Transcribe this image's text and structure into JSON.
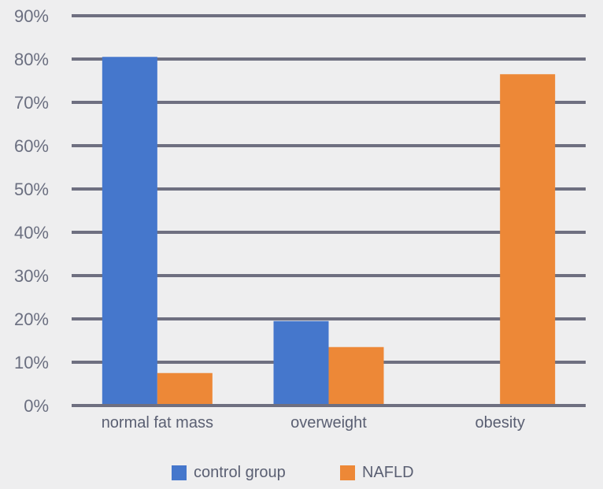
{
  "chart_data": {
    "type": "bar",
    "title": "",
    "xlabel": "",
    "ylabel": "",
    "categories": [
      "normal fat mass",
      "overweight",
      "obesity"
    ],
    "series": [
      {
        "name": "control group",
        "color": "#4577cc",
        "values": [
          80.5,
          19.5,
          0
        ]
      },
      {
        "name": "NAFLD",
        "color": "#ed8837",
        "values": [
          7.5,
          13.5,
          76.5
        ]
      }
    ],
    "ylim": [
      0,
      90
    ],
    "yticks": [
      0,
      10,
      20,
      30,
      40,
      50,
      60,
      70,
      80,
      90
    ],
    "ytick_labels": [
      "0%",
      "10%",
      "20%",
      "30%",
      "40%",
      "50%",
      "60%",
      "70%",
      "80%",
      "90%"
    ],
    "grid": true,
    "gridline_color": "#6e6f80",
    "legend_position": "bottom"
  }
}
